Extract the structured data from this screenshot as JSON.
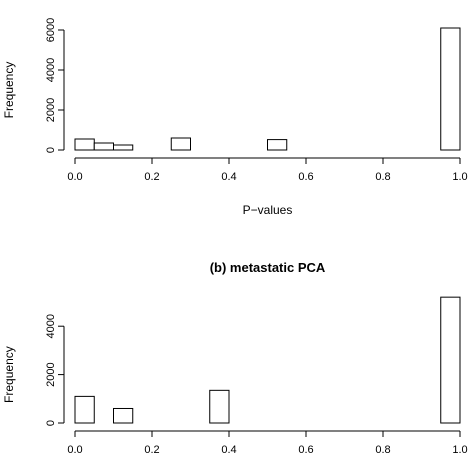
{
  "chart_data": [
    {
      "type": "bar",
      "title": "",
      "xlabel": "P−values",
      "ylabel": "Frequency",
      "xlim": [
        0,
        1
      ],
      "ylim": [
        0,
        6000
      ],
      "x_ticks": [
        "0.0",
        "0.2",
        "0.4",
        "0.6",
        "0.8",
        "1.0"
      ],
      "y_ticks": [
        "0",
        "2000",
        "4000",
        "6000"
      ],
      "bin_width": 0.05,
      "bins": [
        {
          "x0": 0.0,
          "x1": 0.05,
          "value": 550
        },
        {
          "x0": 0.05,
          "x1": 0.1,
          "value": 350
        },
        {
          "x0": 0.1,
          "x1": 0.15,
          "value": 250
        },
        {
          "x0": 0.25,
          "x1": 0.3,
          "value": 600
        },
        {
          "x0": 0.5,
          "x1": 0.55,
          "value": 520
        },
        {
          "x0": 0.95,
          "x1": 1.0,
          "value": 6100
        }
      ],
      "grid": false
    },
    {
      "type": "bar",
      "title": "(b) metastatic PCA",
      "xlabel": "",
      "ylabel": "Frequency",
      "xlim": [
        0,
        1
      ],
      "ylim": [
        0,
        5000
      ],
      "x_ticks": [
        "0.0",
        "0.2",
        "0.4",
        "0.6",
        "0.8",
        "1.0"
      ],
      "y_ticks": [
        "0",
        "2000",
        "4000"
      ],
      "bin_width": 0.05,
      "bins": [
        {
          "x0": 0.0,
          "x1": 0.05,
          "value": 1100
        },
        {
          "x0": 0.1,
          "x1": 0.15,
          "value": 600
        },
        {
          "x0": 0.35,
          "x1": 0.4,
          "value": 1350
        },
        {
          "x0": 0.95,
          "x1": 1.0,
          "value": 5200
        }
      ],
      "grid": false
    }
  ]
}
